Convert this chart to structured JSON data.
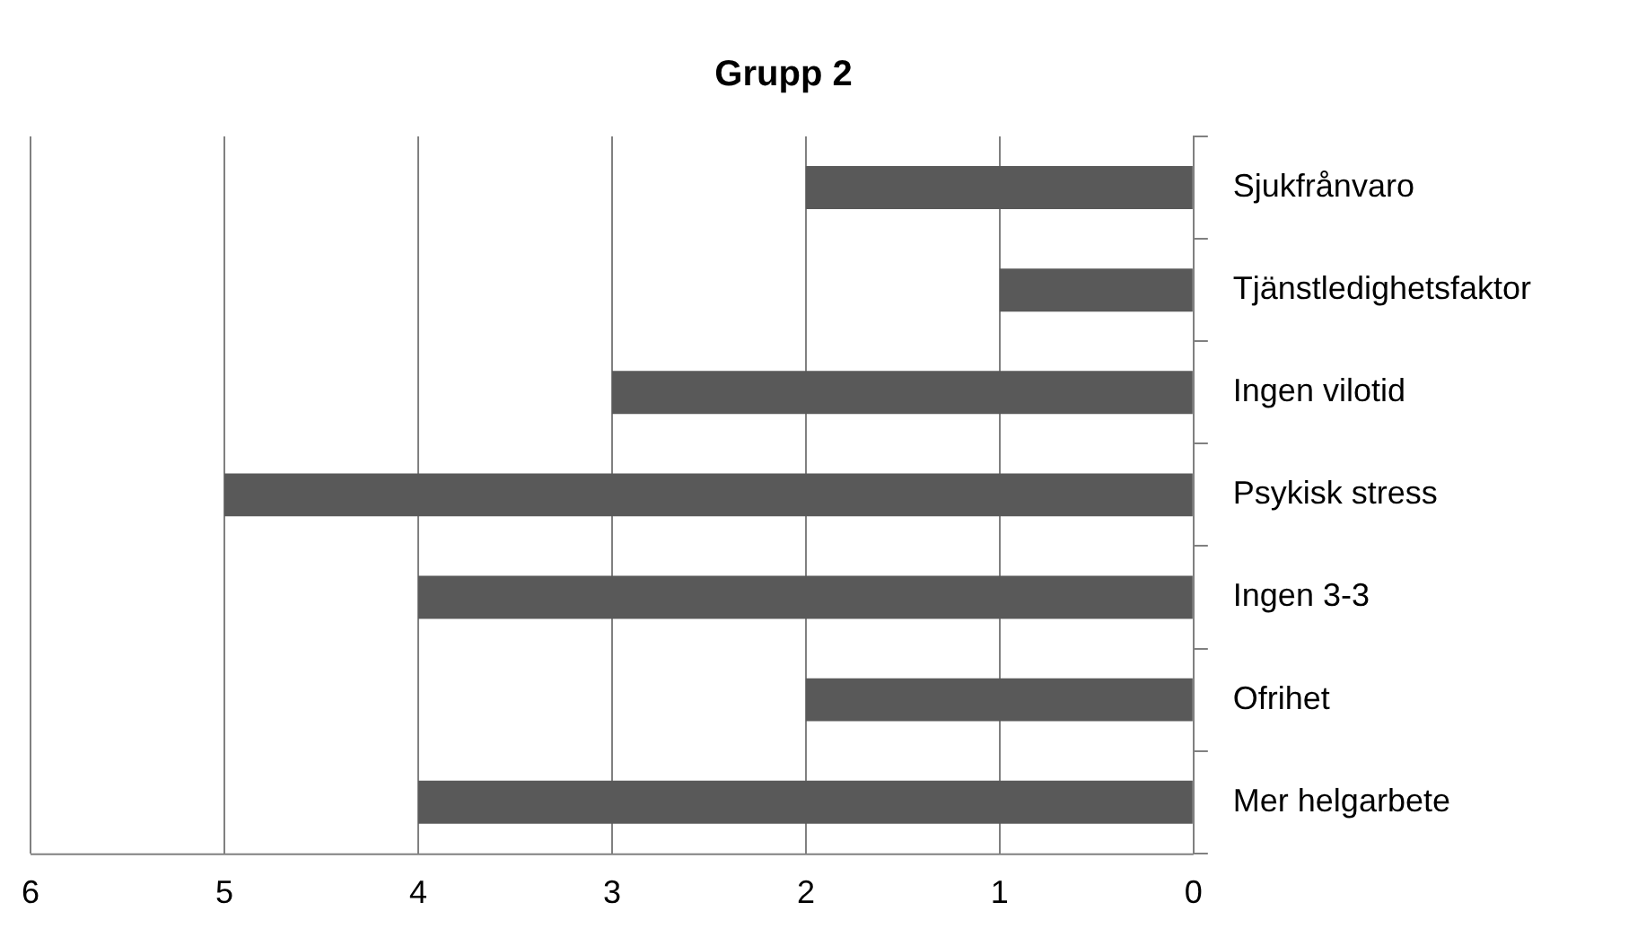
{
  "chart_data": {
    "type": "bar",
    "orientation": "horizontal",
    "title": "Grupp 2",
    "categories": [
      "Sjukfrånvaro",
      "Tjänstledighetsfaktor",
      "Ingen vilotid",
      "Psykisk stress",
      "Ingen 3-3",
      "Ofrihet",
      "Mer helgarbete"
    ],
    "values": [
      2,
      1,
      3,
      5,
      4,
      2,
      4
    ],
    "color": "#595959",
    "xlim": [
      6,
      0
    ],
    "xticks": [
      6,
      5,
      4,
      3,
      2,
      1,
      0
    ],
    "grid": "x",
    "legend": false
  }
}
